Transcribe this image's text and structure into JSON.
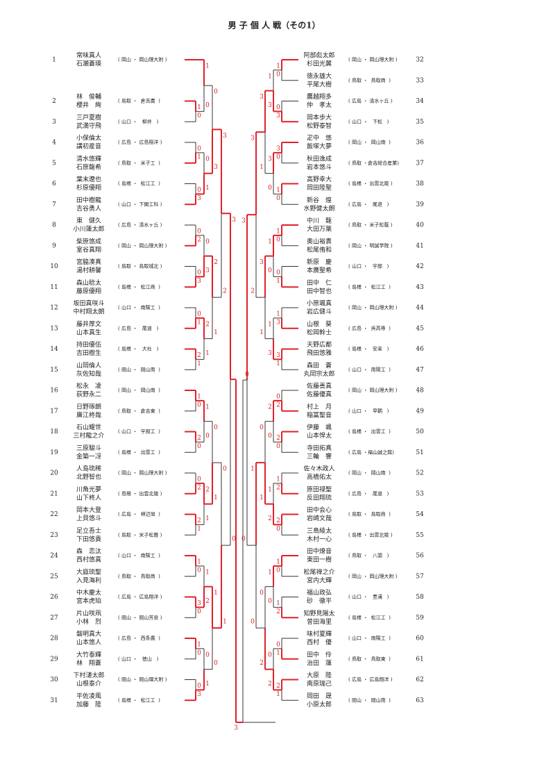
{
  "title": "男 子 個 人 戦（その1）",
  "left": {
    "entries": [
      {
        "no": "1",
        "names": [
          "常味真人",
          "石瀬蒼瑛"
        ],
        "affiliation": "( 岡山 ・ 岡山理大附 )"
      },
      null,
      {
        "no": "2",
        "names": [
          "林　俊輔",
          "櫻井　絢"
        ],
        "affiliation": "( 鳥取 ・  倉吉農  )"
      },
      {
        "no": "3",
        "names": [
          "三戸夏樹",
          "武満守飛"
        ],
        "affiliation": "( 山口 ・   柳井   )"
      },
      {
        "no": "4",
        "names": [
          "小保倫太",
          "講初産音"
        ],
        "affiliation": "( 広島 ・ 広島翔洋 )"
      },
      {
        "no": "5",
        "names": [
          "清水悠輝",
          "石原龍希"
        ],
        "affiliation": "( 鳥取 ・  米子工  )"
      },
      {
        "no": "6",
        "names": [
          "葉末遼也",
          "杉原優翔"
        ],
        "affiliation": "( 島根 ・  松江工  )"
      },
      {
        "no": "7",
        "names": [
          "田中樹龍",
          "吉谷勇人"
        ],
        "affiliation": "( 山口 ・ 下関工科 )"
      },
      {
        "no": "8",
        "names": [
          "東　健久",
          "小川蓮太郎"
        ],
        "affiliation": "( 広島 ・ 清水ヶ丘 )"
      },
      {
        "no": "9",
        "names": [
          "柴原悠成",
          "室谷真翔"
        ],
        "affiliation": "( 岡山 ・ 岡山理大附 )"
      },
      {
        "no": "10",
        "names": [
          "宮脇湊真",
          "湯村耕馨"
        ],
        "affiliation": "( 鳥取 ・ 鳥取城北 )"
      },
      {
        "no": "11",
        "names": [
          "森山稔太",
          "藤原優翔"
        ],
        "affiliation": "( 島根 ・  松江商  )"
      },
      {
        "no": "12",
        "names": [
          "坂田真咲斗",
          "中村翔太朗"
        ],
        "affiliation": "( 山口 ・  南陽工  )"
      },
      {
        "no": "13",
        "names": [
          "藤井厚文",
          "山本真生"
        ],
        "affiliation": "( 広島 ・   尾道   )"
      },
      {
        "no": "14",
        "names": [
          "持田優伍",
          "吉田樹生"
        ],
        "affiliation": "( 島根 ・   大社   )"
      },
      {
        "no": "15",
        "names": [
          "山岡倫人",
          "灰佐知哉"
        ],
        "affiliation": "( 岡山 ・  岡山南  )"
      },
      {
        "no": "16",
        "names": [
          "松永　凌",
          "荻野永二"
        ],
        "affiliation": "( 岡山 ・  岡山南  )"
      },
      {
        "no": "17",
        "names": [
          "日野琢朗",
          "廣江柊哉"
        ],
        "affiliation": "( 鳥取 ・  倉吉東  )"
      },
      {
        "no": "18",
        "names": [
          "石山耀世",
          "三村龍之介"
        ],
        "affiliation": "( 山口 ・  宇部工  )"
      },
      {
        "no": "19",
        "names": [
          "三原駿斗",
          "金築一冴"
        ],
        "affiliation": "( 島根 ・  出雲工  )"
      },
      {
        "no": "20",
        "names": [
          "人島琉稀",
          "北野智也"
        ],
        "affiliation": "( 岡山 ・ 岡山理大附 )"
      },
      {
        "no": "21",
        "names": [
          "川角光夢",
          "山下柊人"
        ],
        "affiliation": "( 島根 ・ 出雲北陵 )"
      },
      {
        "no": "22",
        "names": [
          "岡本大登",
          "上貝悠斗"
        ],
        "affiliation": "( 広島 ・  神辺旭  )"
      },
      {
        "no": "23",
        "names": [
          "足立吾士",
          "下田悠貴"
        ],
        "affiliation": "( 鳥取 ・ 米子松蔭 )"
      },
      {
        "no": "24",
        "names": [
          "森　恋汰",
          "西村悠真"
        ],
        "affiliation": "( 山口 ・  南陽工  )"
      },
      {
        "no": "25",
        "names": [
          "大庭琉聖",
          "入見海利"
        ],
        "affiliation": "( 鳥取 ・  鳥取商  )"
      },
      {
        "no": "26",
        "names": [
          "中木慶太",
          "宮本虎珀"
        ],
        "affiliation": "( 広島 ・ 広島翔洋 )"
      },
      {
        "no": "27",
        "names": [
          "片山咲凧",
          "小林　烈"
        ],
        "affiliation": "( 岡山 ・ 岡山芳泉 )"
      },
      {
        "no": "28",
        "names": [
          "磐明真大",
          "山本悠人"
        ],
        "affiliation": "( 広島 ・  西条農  )"
      },
      {
        "no": "29",
        "names": [
          "大竹泰輝",
          "林　翔蒼"
        ],
        "affiliation": "( 山口 ・   徳山   )"
      },
      {
        "no": "30",
        "names": [
          "下村漣太郎",
          "山根泰介"
        ],
        "affiliation": "( 岡山 ・ 岡山理大附 )"
      },
      {
        "no": "31",
        "names": [
          "平佐凌風",
          "加藤　陸"
        ],
        "affiliation": "( 島根 ・  松江工  )"
      }
    ],
    "rounds": [
      [
        null,
        [
          1,
          0
        ],
        [
          0,
          1
        ],
        [
          0,
          3
        ],
        [
          0,
          2
        ],
        [
          0,
          3
        ],
        [
          0,
          1
        ],
        [
          2,
          1
        ],
        [
          1,
          0
        ],
        [
          2,
          0
        ],
        [
          0,
          2
        ],
        [
          2,
          1
        ],
        [
          1,
          0
        ],
        [
          3,
          0
        ],
        [
          1,
          0
        ],
        [
          0,
          3
        ]
      ],
      [
        [
          1,
          0
        ],
        [
          0,
          1
        ],
        [
          0,
          3
        ],
        [
          2,
          1
        ],
        [
          1,
          0
        ],
        [
          2,
          1
        ],
        [
          1,
          2
        ],
        [
          0,
          1
        ]
      ],
      [
        [
          0,
          3
        ],
        [
          2,
          1
        ],
        [
          0,
          1
        ],
        [
          1,
          0
        ]
      ],
      [
        [
          3,
          2
        ],
        [
          0,
          1
        ]
      ],
      [
        [
          3,
          0
        ]
      ]
    ]
  },
  "right": {
    "entries": [
      {
        "no": "32",
        "names": [
          "阿部彪太郎",
          "杉田光翼"
        ],
        "affiliation": "( 岡山 ・ 岡山理大附 )"
      },
      {
        "no": "33",
        "names": [
          "徳永雄大",
          "平尾大樹"
        ],
        "affiliation": "( 鳥取 ・  鳥取商  )"
      },
      {
        "no": "34",
        "names": [
          "鷹越翔多",
          "仲　孝太"
        ],
        "affiliation": "( 広島 ・ 清水ヶ丘 )"
      },
      {
        "no": "35",
        "names": [
          "岡本歩大",
          "松野泰智"
        ],
        "affiliation": "( 山口 ・   下松   )"
      },
      {
        "no": "36",
        "names": [
          "疋中　悠",
          "飯塚大夢"
        ],
        "affiliation": "( 岡山 ・  岡山南  )"
      },
      {
        "no": "37",
        "names": [
          "秋田逸成",
          "岩本悠斗"
        ],
        "affiliation": "( 鳥取 ・倉吉総合産業)"
      },
      {
        "no": "38",
        "names": [
          "高野幸大",
          "岡田陸聖"
        ],
        "affiliation": "( 島根 ・ 出雲北陵 )"
      },
      {
        "no": "39",
        "names": [
          "新谷　煌",
          "水野健太朗"
        ],
        "affiliation": "( 広島 ・   尾道   )"
      },
      {
        "no": "40",
        "names": [
          "中川　龍",
          "大田万葉"
        ],
        "affiliation": "( 鳥取 ・ 米子松蔭 )"
      },
      {
        "no": "41",
        "names": [
          "奥山裕貴",
          "松尾侑和"
        ],
        "affiliation": "( 岡山 ・ 明誠学院 )"
      },
      {
        "no": "42",
        "names": [
          "新原　慶",
          "本廣聖希"
        ],
        "affiliation": "( 山口 ・   宇部   )"
      },
      {
        "no": "43",
        "names": [
          "田中　仁",
          "田中智也"
        ],
        "affiliation": "( 島根 ・  松江工  )"
      },
      {
        "no": "44",
        "names": [
          "小原颯真",
          "岩広健斗"
        ],
        "affiliation": "( 岡山 ・ 岡山理大附 )"
      },
      {
        "no": "45",
        "names": [
          "山根　葵",
          "松岡幹士"
        ],
        "affiliation": "( 広島 ・  呉高専  )"
      },
      {
        "no": "46",
        "names": [
          "天野広都",
          "飛田悠雅"
        ],
        "affiliation": "( 島根 ・   安来   )"
      },
      {
        "no": "47",
        "names": [
          "森田　蒼",
          "丸岡宗太郎"
        ],
        "affiliation": "( 山口 ・  南陽工  )"
      },
      {
        "no": "48",
        "names": [
          "佐藤善真",
          "佐藤優真"
        ],
        "affiliation": "( 岡山 ・ 岡山理大附 )"
      },
      {
        "no": "49",
        "names": [
          "村上　月",
          "稲冨聖音"
        ],
        "affiliation": "( 山口 ・   早鞆   )"
      },
      {
        "no": "50",
        "names": [
          "伊藤　颯",
          "山本悍太"
        ],
        "affiliation": "( 島根 ・  出雲工  )"
      },
      {
        "no": "51",
        "names": [
          "寺田拓真",
          "三輪　響"
        ],
        "affiliation": "( 広島 ・福山誠之館)"
      },
      {
        "no": "52",
        "names": [
          "佐々木政人",
          "高橋佑太"
        ],
        "affiliation": "( 岡山 ・  岡山南  )"
      },
      {
        "no": "53",
        "names": [
          "原田禄聖",
          "反田翔琉"
        ],
        "affiliation": "( 広島 ・   尾道   )"
      },
      {
        "no": "54",
        "names": [
          "田中会心",
          "岩崎文哉"
        ],
        "affiliation": "( 鳥取 ・  鳥取商  )"
      },
      {
        "no": "55",
        "names": [
          "三島綾太",
          "木村一心"
        ],
        "affiliation": "( 島根 ・ 出雲北陵 )"
      },
      {
        "no": "56",
        "names": [
          "田中燎音",
          "東田一樹"
        ],
        "affiliation": "( 鳥取 ・   八頭   )"
      },
      {
        "no": "57",
        "names": [
          "松尾禅之介",
          "宮内大輝"
        ],
        "affiliation": "( 岡山 ・ 岡山理大附 )"
      },
      {
        "no": "58",
        "names": [
          "福山政弘",
          "砂　徹平"
        ],
        "affiliation": "( 山口 ・   豊浦   )"
      },
      {
        "no": "59",
        "names": [
          "知野見陽太",
          "曽田海里"
        ],
        "affiliation": "( 島根 ・  松江工  )"
      },
      {
        "no": "60",
        "names": [
          "味村夏輝",
          "西村　優"
        ],
        "affiliation": "( 山口 ・  南陽工  )"
      },
      {
        "no": "61",
        "names": [
          "田中　伶",
          "治田　蓮"
        ],
        "affiliation": "( 鳥取 ・  鳥取東  )"
      },
      {
        "no": "62",
        "names": [
          "大原　陸",
          "南原瑞己"
        ],
        "affiliation": "( 広島 ・ 広島翔洋 )"
      },
      {
        "no": "63",
        "names": [
          "岡田　晟",
          "小原太郎"
        ],
        "affiliation": "( 岡山 ・  岡山南  )"
      }
    ],
    "rounds": [
      [
        [
          1,
          0
        ],
        [
          0,
          3
        ],
        [
          3,
          0
        ],
        [
          1,
          0
        ],
        [
          1,
          0
        ],
        [
          0,
          1
        ],
        [
          1,
          3
        ],
        [
          3,
          1
        ],
        [
          0,
          2
        ],
        [
          2,
          0
        ],
        [
          1,
          2
        ],
        [
          2,
          0
        ],
        [
          1,
          0
        ],
        [
          1,
          2
        ],
        [
          0,
          1
        ],
        [
          2,
          1
        ]
      ],
      [
        [
          1,
          3
        ],
        [
          3,
          0
        ],
        [
          1,
          0
        ],
        [
          1,
          3
        ],
        [
          2,
          0
        ],
        [
          1,
          2
        ],
        [
          1,
          0
        ],
        [
          0,
          2
        ]
      ],
      [
        [
          3,
          1
        ],
        [
          3,
          1
        ],
        [
          0,
          1
        ],
        [
          0,
          2
        ]
      ],
      [
        [
          3,
          2
        ],
        [
          1,
          0
        ]
      ],
      [
        [
          3,
          0
        ]
      ]
    ]
  },
  "final": [
    3,
    0
  ]
}
